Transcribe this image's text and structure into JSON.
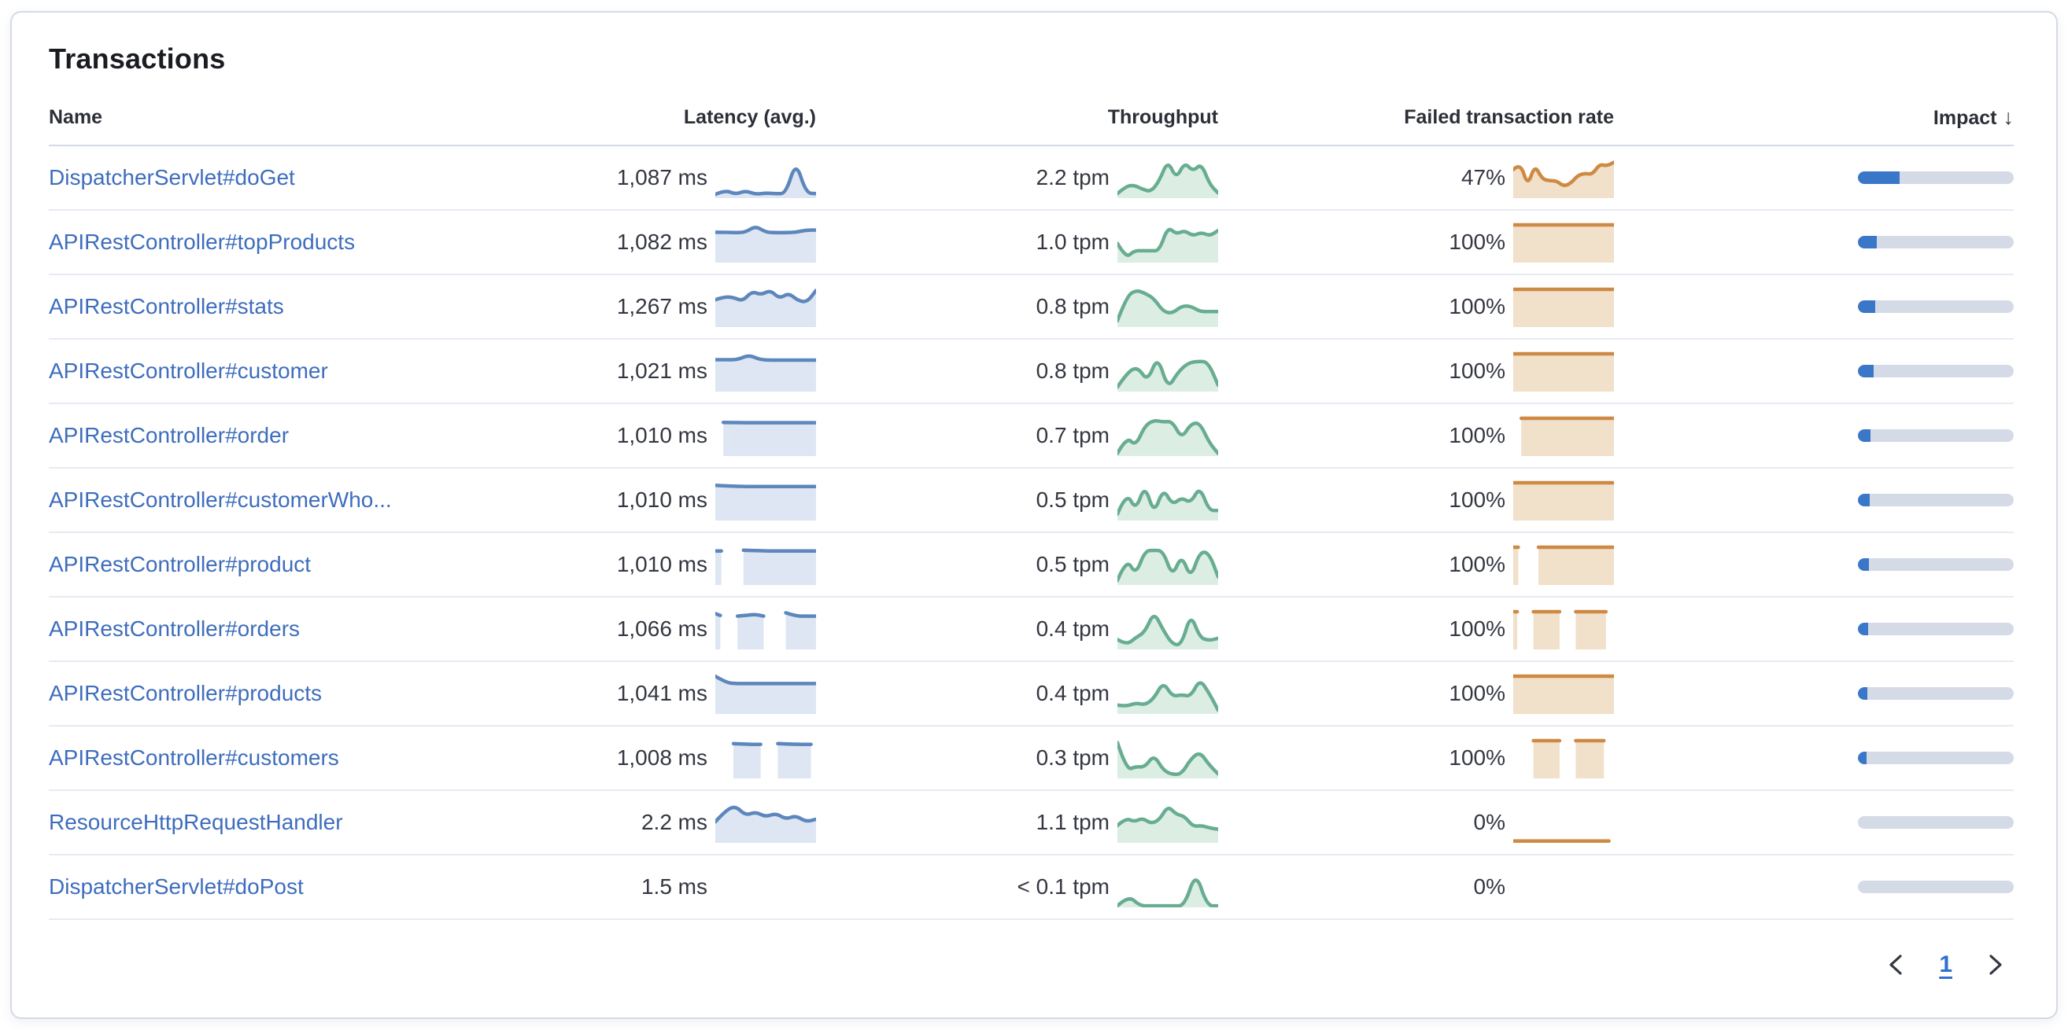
{
  "card": {
    "title": "Transactions"
  },
  "table": {
    "columns": [
      "Name",
      "Latency (avg.)",
      "Throughput",
      "Failed transaction rate",
      "Impact"
    ],
    "sort_icon": "↓",
    "rows": [
      {
        "name": "DispatcherServlet#doGet",
        "latency": "1,087 ms",
        "throughput": "2.2 tpm",
        "failed": "47%",
        "impact_pct": 27,
        "latency_spark": {
          "segs": [
            {
              "x": [
                0,
                1
              ],
              "pts": [
                0.08,
                0.2,
                0.08,
                0.18,
                0.08,
                0.12,
                0.1,
                0.1,
                0.98,
                0.12,
                0.1
              ]
            }
          ]
        },
        "throughput_spark": {
          "segs": [
            {
              "x": [
                0,
                1
              ],
              "pts": [
                0.1,
                0.3,
                0.33,
                0.22,
                0.15,
                0.45,
                1.0,
                0.5,
                0.95,
                0.7,
                0.92,
                0.35,
                0.12
              ]
            }
          ]
        },
        "failed_spark": {
          "segs": [
            {
              "x": [
                0,
                1
              ],
              "pts": [
                0.75,
                0.95,
                0.3,
                0.88,
                0.5,
                0.45,
                0.45,
                0.3,
                0.38,
                0.6,
                0.65,
                0.62,
                0.9,
                0.85,
                0.95
              ]
            }
          ]
        }
      },
      {
        "name": "APIRestController#topProducts",
        "latency": "1,082 ms",
        "throughput": "1.0 tpm",
        "failed": "100%",
        "impact_pct": 12,
        "latency_spark": {
          "segs": [
            {
              "x": [
                0,
                1
              ],
              "pts": [
                0.8,
                0.8,
                0.79,
                0.8,
                0.97,
                0.8,
                0.79,
                0.79,
                0.8,
                0.86,
                0.86
              ]
            }
          ]
        },
        "throughput_spark": {
          "segs": [
            {
              "x": [
                0,
                1
              ],
              "pts": [
                0.5,
                0.1,
                0.3,
                0.3,
                0.3,
                0.3,
                0.95,
                0.75,
                0.85,
                0.7,
                0.8,
                0.7,
                0.85
              ]
            }
          ]
        },
        "failed_spark": {
          "segs": [
            {
              "x": [
                0,
                1
              ],
              "pts": [
                1,
                1
              ]
            }
          ]
        }
      },
      {
        "name": "APIRestController#stats",
        "latency": "1,267 ms",
        "throughput": "0.8 tpm",
        "failed": "100%",
        "impact_pct": 11,
        "latency_spark": {
          "segs": [
            {
              "x": [
                0,
                1
              ],
              "pts": [
                0.72,
                0.8,
                0.78,
                0.68,
                0.95,
                0.85,
                0.98,
                0.75,
                0.9,
                0.7,
                0.65,
                0.97
              ]
            }
          ]
        },
        "throughput_spark": {
          "segs": [
            {
              "x": [
                0,
                1
              ],
              "pts": [
                0.15,
                0.8,
                0.98,
                0.9,
                0.75,
                0.4,
                0.35,
                0.55,
                0.55,
                0.4,
                0.4,
                0.4
              ]
            }
          ]
        },
        "failed_spark": {
          "segs": [
            {
              "x": [
                0,
                1
              ],
              "pts": [
                1,
                1
              ]
            }
          ]
        }
      },
      {
        "name": "APIRestController#customer",
        "latency": "1,021 ms",
        "throughput": "0.8 tpm",
        "failed": "100%",
        "impact_pct": 10,
        "latency_spark": {
          "segs": [
            {
              "x": [
                0,
                1
              ],
              "pts": [
                0.84,
                0.84,
                0.84,
                0.97,
                0.84,
                0.83,
                0.83,
                0.83,
                0.83,
                0.83
              ]
            }
          ]
        },
        "throughput_spark": {
          "segs": [
            {
              "x": [
                0,
                1
              ],
              "pts": [
                0.1,
                0.5,
                0.65,
                0.25,
                0.95,
                0.05,
                0.5,
                0.75,
                0.8,
                0.78,
                0.15
              ]
            }
          ]
        },
        "failed_spark": {
          "segs": [
            {
              "x": [
                0,
                1
              ],
              "pts": [
                1,
                1
              ]
            }
          ]
        }
      },
      {
        "name": "APIRestController#order",
        "latency": "1,010 ms",
        "throughput": "0.7 tpm",
        "failed": "100%",
        "impact_pct": 8,
        "latency_spark": {
          "segs": [
            {
              "x": [
                0.08,
                1
              ],
              "pts": [
                0.89,
                0.88,
                0.88,
                0.88,
                0.88
              ]
            }
          ]
        },
        "throughput_spark": {
          "segs": [
            {
              "x": [
                0,
                1
              ],
              "pts": [
                0.05,
                0.5,
                0.25,
                0.8,
                0.95,
                0.9,
                0.92,
                0.45,
                0.85,
                0.88,
                0.35,
                0.05
              ]
            }
          ]
        },
        "failed_spark": {
          "segs": [
            {
              "x": [
                0.08,
                1
              ],
              "pts": [
                1,
                1
              ]
            }
          ]
        }
      },
      {
        "name": "APIRestController#customerWho...",
        "latency": "1,010 ms",
        "throughput": "0.5 tpm",
        "failed": "100%",
        "impact_pct": 7.5,
        "latency_spark": {
          "segs": [
            {
              "x": [
                0,
                1
              ],
              "pts": [
                0.93,
                0.9,
                0.9,
                0.9,
                0.9,
                0.9
              ]
            }
          ]
        },
        "throughput_spark": {
          "segs": [
            {
              "x": [
                0,
                1
              ],
              "pts": [
                0.15,
                0.75,
                0.25,
                0.95,
                0.15,
                0.85,
                0.4,
                0.6,
                0.45,
                0.9,
                0.25,
                0.25
              ]
            }
          ]
        },
        "failed_spark": {
          "segs": [
            {
              "x": [
                0,
                1
              ],
              "pts": [
                1,
                1
              ]
            }
          ]
        }
      },
      {
        "name": "APIRestController#product",
        "latency": "1,010 ms",
        "throughput": "0.5 tpm",
        "failed": "100%",
        "impact_pct": 7,
        "latency_spark": {
          "segs": [
            {
              "x": [
                0,
                0.06
              ],
              "pts": [
                0.9,
                0.9
              ]
            },
            {
              "x": [
                0.28,
                1
              ],
              "pts": [
                0.92,
                0.9,
                0.9,
                0.9,
                0.9
              ]
            }
          ]
        },
        "throughput_spark": {
          "segs": [
            {
              "x": [
                0,
                1
              ],
              "pts": [
                0.1,
                0.7,
                0.25,
                0.9,
                0.92,
                0.9,
                0.2,
                0.8,
                0.15,
                0.88,
                0.85,
                0.2
              ]
            }
          ]
        },
        "failed_spark": {
          "segs": [
            {
              "x": [
                0,
                0.05
              ],
              "pts": [
                1,
                1
              ]
            },
            {
              "x": [
                0.25,
                1
              ],
              "pts": [
                1,
                1
              ]
            }
          ]
        }
      },
      {
        "name": "APIRestController#orders",
        "latency": "1,066 ms",
        "throughput": "0.4 tpm",
        "failed": "100%",
        "impact_pct": 6.5,
        "latency_spark": {
          "segs": [
            {
              "x": [
                0,
                0.05
              ],
              "pts": [
                0.95,
                0.9
              ]
            },
            {
              "x": [
                0.22,
                0.48
              ],
              "pts": [
                0.88,
                0.9,
                0.93,
                0.88
              ]
            },
            {
              "x": [
                0.7,
                1
              ],
              "pts": [
                0.97,
                0.88,
                0.88,
                0.88
              ]
            }
          ]
        },
        "throughput_spark": {
          "segs": [
            {
              "x": [
                0,
                1
              ],
              "pts": [
                0.25,
                0.1,
                0.3,
                0.45,
                1.0,
                0.5,
                0.12,
                0.1,
                0.95,
                0.3,
                0.22,
                0.28
              ]
            }
          ]
        },
        "failed_spark": {
          "segs": [
            {
              "x": [
                0,
                0.04
              ],
              "pts": [
                1,
                1
              ]
            },
            {
              "x": [
                0.2,
                0.46
              ],
              "pts": [
                1,
                1
              ]
            },
            {
              "x": [
                0.62,
                0.92
              ],
              "pts": [
                1,
                1
              ]
            }
          ]
        }
      },
      {
        "name": "APIRestController#products",
        "latency": "1,041 ms",
        "throughput": "0.4 tpm",
        "failed": "100%",
        "impact_pct": 6,
        "latency_spark": {
          "segs": [
            {
              "x": [
                0,
                1
              ],
              "pts": [
                1.0,
                0.82,
                0.8,
                0.8,
                0.8,
                0.8,
                0.8,
                0.8,
                0.8,
                0.8
              ]
            }
          ]
        },
        "throughput_spark": {
          "segs": [
            {
              "x": [
                0,
                1
              ],
              "pts": [
                0.22,
                0.18,
                0.28,
                0.22,
                0.4,
                0.85,
                0.45,
                0.5,
                0.45,
                0.92,
                0.55,
                0.08
              ]
            }
          ]
        },
        "failed_spark": {
          "segs": [
            {
              "x": [
                0,
                1
              ],
              "pts": [
                1,
                1
              ]
            }
          ]
        }
      },
      {
        "name": "APIRestController#customers",
        "latency": "1,008 ms",
        "throughput": "0.3 tpm",
        "failed": "100%",
        "impact_pct": 5.5,
        "latency_spark": {
          "segs": [
            {
              "x": [
                0.18,
                0.45
              ],
              "pts": [
                0.92,
                0.9,
                0.9
              ]
            },
            {
              "x": [
                0.62,
                0.95
              ],
              "pts": [
                0.92,
                0.9,
                0.9
              ]
            }
          ]
        },
        "throughput_spark": {
          "segs": [
            {
              "x": [
                0,
                1
              ],
              "pts": [
                0.95,
                0.2,
                0.3,
                0.28,
                0.62,
                0.2,
                0.08,
                0.1,
                0.5,
                0.7,
                0.35,
                0.1
              ]
            }
          ]
        },
        "failed_spark": {
          "segs": [
            {
              "x": [
                0.2,
                0.46
              ],
              "pts": [
                1,
                1
              ]
            },
            {
              "x": [
                0.62,
                0.9
              ],
              "pts": [
                1,
                1
              ]
            }
          ]
        }
      },
      {
        "name": "ResourceHttpRequestHandler",
        "latency": "2.2 ms",
        "throughput": "1.1 tpm",
        "failed": "0%",
        "impact_pct": 0,
        "latency_spark": {
          "segs": [
            {
              "x": [
                0,
                1
              ],
              "pts": [
                0.55,
                0.85,
                0.98,
                0.72,
                0.82,
                0.68,
                0.78,
                0.62,
                0.72,
                0.55,
                0.62
              ]
            }
          ]
        },
        "throughput_spark": {
          "segs": [
            {
              "x": [
                0,
                1
              ],
              "pts": [
                0.45,
                0.65,
                0.55,
                0.65,
                0.5,
                0.6,
                0.98,
                0.75,
                0.7,
                0.42,
                0.45,
                0.38,
                0.35
              ]
            }
          ]
        },
        "failed_spark": {
          "segs": [
            {
              "x": [
                0,
                0.95
              ],
              "pts": [
                0.03,
                0.03
              ]
            }
          ]
        }
      },
      {
        "name": "DispatcherServlet#doPost",
        "latency": "1.5 ms",
        "throughput": "< 0.1 tpm",
        "failed": "0%",
        "impact_pct": 0,
        "latency_spark": null,
        "throughput_spark": {
          "segs": [
            {
              "x": [
                0,
                1
              ],
              "pts": [
                0.02,
                0.3,
                0.02,
                0.02,
                0.02,
                0.02,
                0.02,
                0.95,
                0.02,
                0.02
              ]
            }
          ]
        },
        "failed_spark": null
      }
    ]
  },
  "pagination": {
    "page": "1"
  },
  "colors": {
    "latency_line": "#5d87bc",
    "latency_fill": "#dde6f2",
    "throughput_line": "#68ad92",
    "throughput_fill": "#dceee4",
    "failed_line": "#cd8a44",
    "failed_fill": "#f1e0ca",
    "impact_fill": "#3a77c8",
    "impact_track": "#d4dae6",
    "link": "#3e6dbd"
  }
}
